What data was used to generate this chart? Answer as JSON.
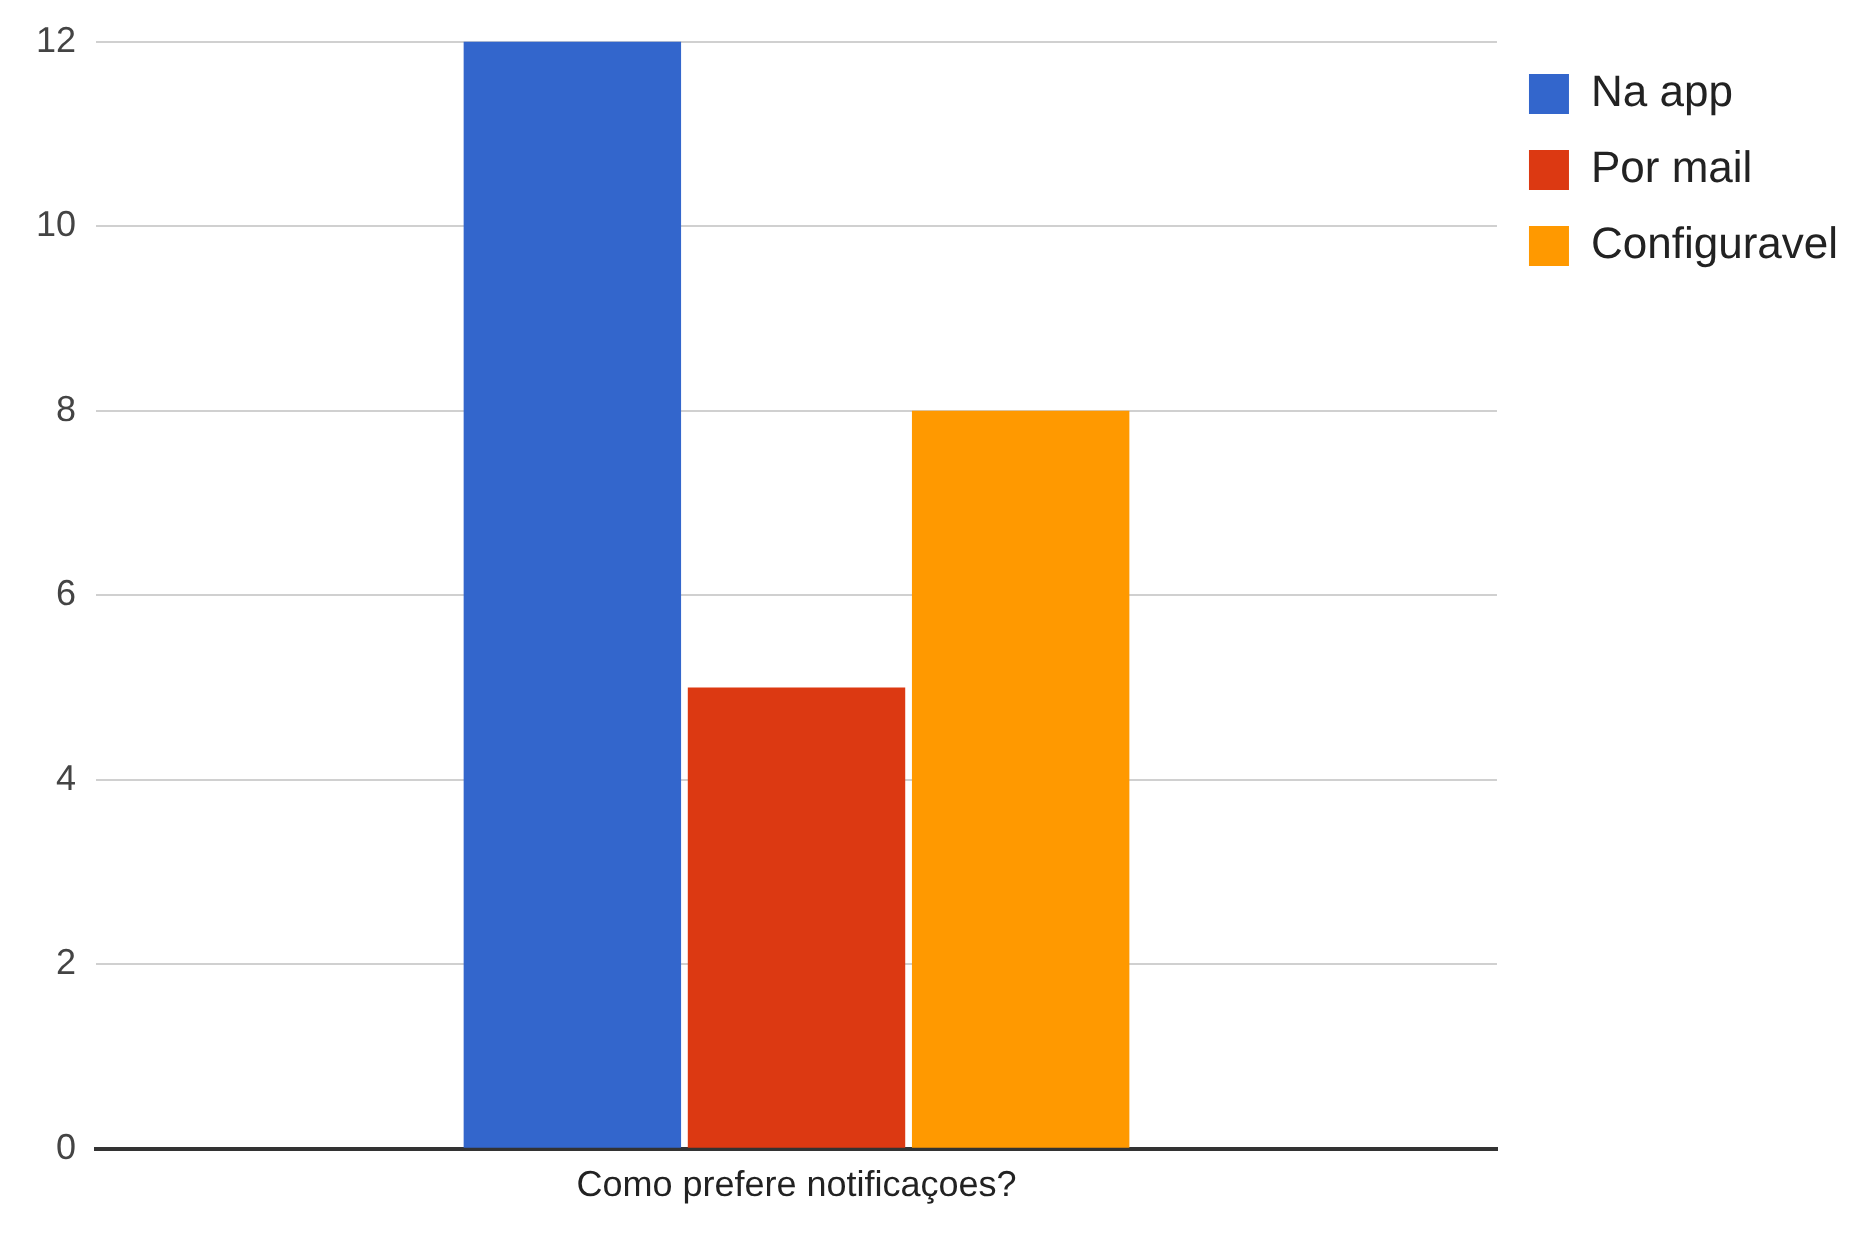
{
  "chart_data": {
    "type": "bar",
    "xlabel": null,
    "categories": [
      "Como prefere notificaçoes?"
    ],
    "series": [
      {
        "name": "Na app",
        "color": "#3366cc",
        "values": [
          12
        ]
      },
      {
        "name": "Por mail",
        "color": "#dc3912",
        "values": [
          5
        ]
      },
      {
        "name": "Configuravel",
        "color": "#ff9900",
        "values": [
          8
        ]
      }
    ],
    "ylim": [
      0,
      12
    ],
    "yticks": [
      0,
      2,
      4,
      6,
      8,
      10,
      12
    ],
    "grid": "y",
    "legend": "top right"
  }
}
